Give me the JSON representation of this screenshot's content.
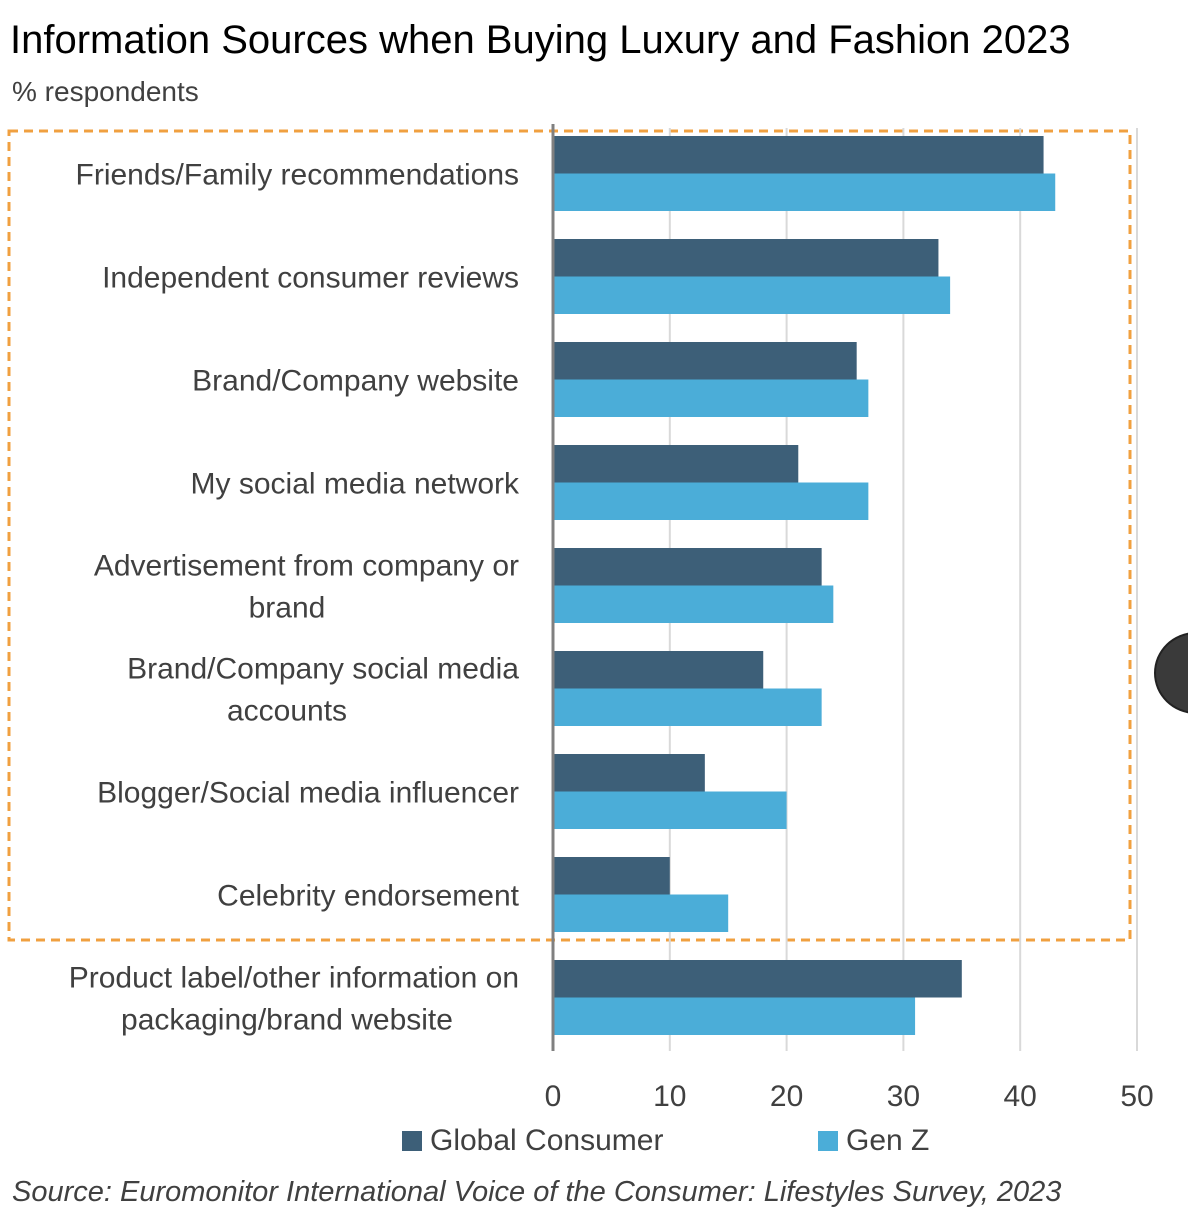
{
  "title": "Information Sources when Buying Luxury and Fashion 2023",
  "subtitle": "% respondents",
  "source": "Source: Euromonitor International Voice of the Consumer: Lifestyles Survey,  2023",
  "colors": {
    "global": "#3d5f78",
    "genz": "#4badd8",
    "grid": "#d9d9d9",
    "axis": "#808080",
    "highlight": "#f0a040"
  },
  "chart_data": {
    "type": "bar",
    "orientation": "horizontal",
    "title": "Information Sources when Buying Luxury and Fashion 2023",
    "subtitle": "% respondents",
    "categories": [
      [
        "Friends/Family recommendations"
      ],
      [
        "Independent consumer reviews"
      ],
      [
        "Brand/Company website"
      ],
      [
        "My social media network"
      ],
      [
        "Advertisement from company or",
        "brand"
      ],
      [
        "Brand/Company social media",
        "accounts"
      ],
      [
        "Blogger/Social media influencer"
      ],
      [
        "Celebrity endorsement"
      ],
      [
        "Product label/other information on",
        "packaging/brand website"
      ]
    ],
    "series": [
      {
        "name": "Global Consumer",
        "values": [
          42,
          33,
          26,
          21,
          23,
          18,
          13,
          10,
          35
        ]
      },
      {
        "name": "Gen Z",
        "values": [
          43,
          34,
          27,
          27,
          24,
          23,
          20,
          15,
          31
        ]
      }
    ],
    "xlim": [
      0,
      50
    ],
    "xticks": [
      0,
      10,
      20,
      30,
      40,
      50
    ],
    "grid": true,
    "legend": "bottom",
    "highlighted_categories": 8
  }
}
